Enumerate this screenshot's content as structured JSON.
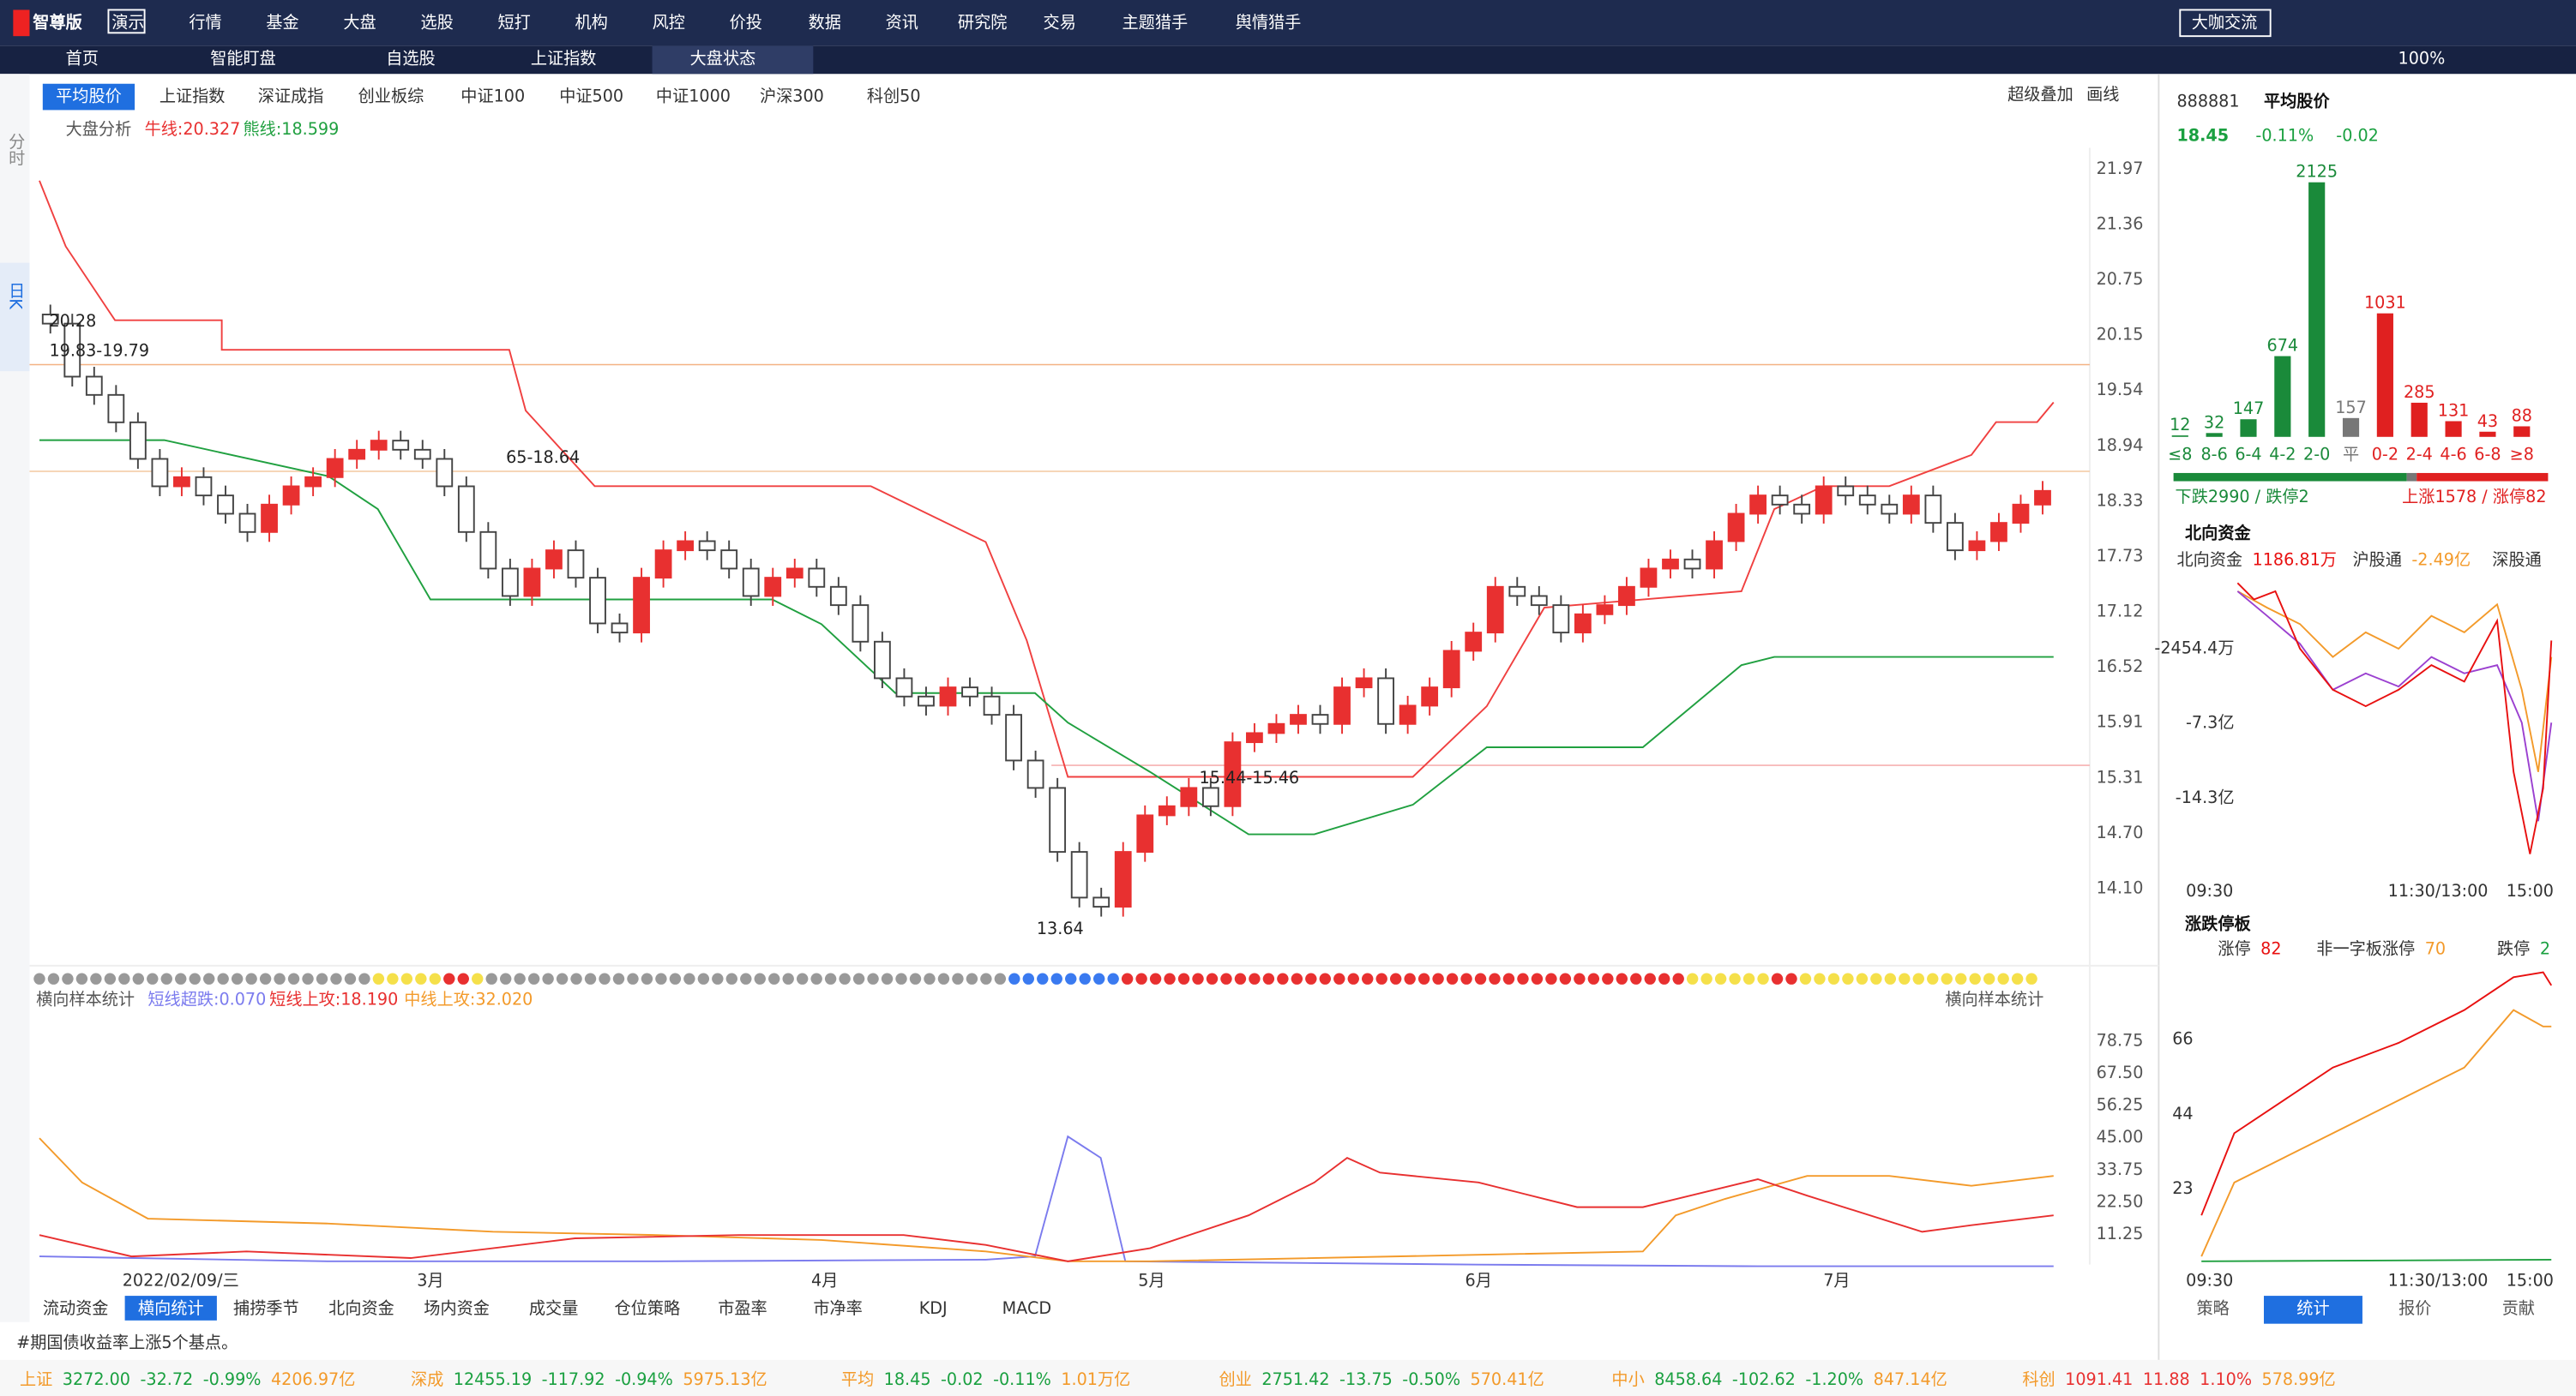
{
  "app": {
    "logo": "智尊版",
    "badge": "演示",
    "menu": [
      "行情",
      "基金",
      "大盘",
      "选股",
      "短打",
      "机构",
      "风控",
      "价投",
      "数据",
      "资讯",
      "研究院",
      "交易",
      "主题猎手",
      "舆情猎手"
    ],
    "exchange_button": "大咖交流",
    "zoom": "100%"
  },
  "tabs": [
    "首页",
    "智能盯盘",
    "自选股",
    "上证指数",
    "大盘状态"
  ],
  "index_tabs": [
    "平均股价",
    "上证指数",
    "深证成指",
    "创业板综",
    "中证100",
    "中证500",
    "中证1000",
    "沪深300",
    "科创50"
  ],
  "chart_tools": [
    "超级叠加",
    "画线"
  ],
  "side_tabs": [
    "分时",
    "日K"
  ],
  "indicator": {
    "name": "大盘分析",
    "bull": "牛线:20.327",
    "bear": "熊线:18.599"
  },
  "price_axis": [
    "21.97",
    "21.36",
    "20.75",
    "20.15",
    "19.54",
    "18.94",
    "18.33",
    "17.73",
    "17.12",
    "16.52",
    "15.91",
    "15.31",
    "14.70",
    "14.10"
  ],
  "annotations": [
    "20.28",
    "19.83-19.79",
    "65-18.64",
    "15.44-15.46",
    "13.64"
  ],
  "candles": {
    "closes": [
      20.28,
      19.7,
      19.5,
      19.2,
      18.8,
      18.5,
      18.6,
      18.4,
      18.2,
      18.0,
      18.3,
      18.5,
      18.6,
      18.8,
      18.9,
      19.0,
      18.9,
      18.8,
      18.5,
      18.0,
      17.6,
      17.3,
      17.6,
      17.8,
      17.5,
      17.0,
      16.9,
      17.5,
      17.8,
      17.9,
      17.8,
      17.6,
      17.3,
      17.5,
      17.6,
      17.4,
      17.2,
      16.8,
      16.4,
      16.2,
      16.1,
      16.3,
      16.2,
      16.0,
      15.5,
      15.2,
      14.5,
      14.0,
      13.9,
      14.5,
      14.9,
      15.0,
      15.2,
      15.0,
      15.7,
      15.8,
      15.9,
      16.0,
      15.9,
      16.3,
      16.4,
      15.9,
      16.1,
      16.3,
      16.7,
      16.9,
      17.4,
      17.3,
      17.2,
      16.9,
      17.1,
      17.2,
      17.4,
      17.6,
      17.7,
      17.6,
      17.9,
      18.2,
      18.4,
      18.3,
      18.2,
      18.5,
      18.4,
      18.3,
      18.2,
      18.4,
      18.1,
      17.8,
      17.9,
      18.1,
      18.3,
      18.45
    ]
  },
  "lower": {
    "name": "横向样本统计",
    "short_down": "短线超跌:0.070",
    "short_up": "短线上攻:18.190",
    "mid_up": "中线上攻:32.020",
    "axis": [
      "78.75",
      "67.50",
      "56.25",
      "45.00",
      "33.75",
      "22.50",
      "11.25"
    ]
  },
  "dates": [
    "2022/02/09/三",
    "3月",
    "4月",
    "5月",
    "6月",
    "7月"
  ],
  "bottom_tabs": [
    "流动资金",
    "横向统计",
    "捕捞季节",
    "北向资金",
    "场内资金",
    "成交量",
    "仓位策略",
    "市盈率",
    "市净率",
    "KDJ",
    "MACD"
  ],
  "news": "#期国债收益率上涨5个基点。",
  "ticker": [
    {
      "name": "上证",
      "price": "3272.00",
      "change": "-32.72",
      "pct": "-0.99%",
      "amount": "4206.97亿"
    },
    {
      "name": "深成",
      "price": "12455.19",
      "change": "-117.92",
      "pct": "-0.94%",
      "amount": "5975.13亿"
    },
    {
      "name": "平均",
      "price": "18.45",
      "change": "-0.02",
      "pct": "-0.11%",
      "amount": "1.01万亿"
    },
    {
      "name": "创业",
      "price": "2751.42",
      "change": "-13.75",
      "pct": "-0.50%",
      "amount": "570.41亿"
    },
    {
      "name": "中小",
      "price": "8458.64",
      "change": "-102.62",
      "pct": "-1.20%",
      "amount": "847.14亿"
    },
    {
      "name": "科创",
      "price": "1091.41",
      "change": "11.88",
      "pct": "1.10%",
      "amount": "578.99亿"
    }
  ],
  "quote": {
    "code": "888881",
    "name": "平均股价",
    "price": "18.45",
    "pct": "-0.11%",
    "change": "-0.02"
  },
  "distribution": {
    "categories": [
      "≤8",
      "8-6",
      "6-4",
      "4-2",
      "2-0",
      "平",
      "0-2",
      "2-4",
      "4-6",
      "6-8",
      "≥8"
    ],
    "values": [
      12,
      32,
      147,
      674,
      2125,
      157,
      1031,
      285,
      131,
      43,
      88
    ]
  },
  "breadth": {
    "down": "下跌2990 / 跌停2",
    "up": "上涨1578 / 涨停82"
  },
  "north": {
    "title": "北向资金",
    "legend": [
      {
        "name": "北向资金",
        "value": "1186.81万"
      },
      {
        "name": "沪股通",
        "value": "-2.49亿"
      },
      {
        "name": "深股通"
      }
    ],
    "axis": [
      "-2454.4万",
      "-7.3亿",
      "-14.3亿"
    ],
    "times": [
      "09:30",
      "11:30/13:00",
      "15:00"
    ]
  },
  "limit": {
    "title": "涨跌停板",
    "legend": [
      {
        "name": "涨停",
        "value": "82"
      },
      {
        "name": "非一字板涨停",
        "value": "70"
      },
      {
        "name": "跌停",
        "value": "2"
      }
    ],
    "axis": [
      "66",
      "44",
      "23"
    ],
    "times": [
      "09:30",
      "11:30/13:00",
      "15:00"
    ]
  },
  "right_tabs": [
    "策略",
    "统计",
    "报价",
    "贡献"
  ]
}
